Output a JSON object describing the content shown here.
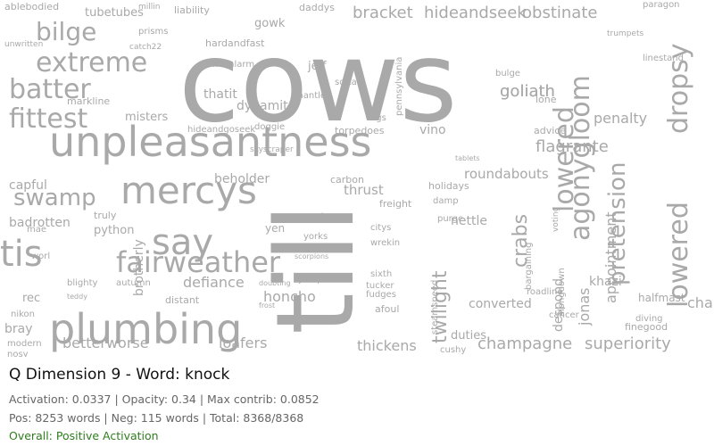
{
  "cloud": {
    "words": [
      {
        "t": "cows",
        "s": 125
      },
      {
        "t": "till",
        "s": 120,
        "r": 1
      },
      {
        "t": "unpleasantness",
        "s": 46
      },
      {
        "t": "mercys",
        "s": 42
      },
      {
        "t": "plumbing",
        "s": 46
      },
      {
        "t": "fairweather",
        "s": 32
      },
      {
        "t": "agonygloom",
        "s": 30,
        "r": 1
      },
      {
        "t": "lowered",
        "s": 30,
        "r": 1
      },
      {
        "t": "dropsy",
        "s": 30,
        "r": 1
      },
      {
        "t": "pretension",
        "s": 26,
        "r": 1
      },
      {
        "t": "say",
        "s": 40
      },
      {
        "t": "tis",
        "s": 40
      },
      {
        "t": "fittest",
        "s": 30
      },
      {
        "t": "batter",
        "s": 30
      },
      {
        "t": "extreme",
        "s": 30
      },
      {
        "t": "bilge",
        "s": 28
      },
      {
        "t": "swamp",
        "s": 26
      },
      {
        "t": "twilight",
        "s": 22,
        "r": 1
      },
      {
        "t": "crabs",
        "s": 22,
        "r": 1
      },
      {
        "t": "champagne",
        "s": 18
      },
      {
        "t": "superiority",
        "s": 18
      },
      {
        "t": "betterworse",
        "s": 16
      },
      {
        "t": "loafers",
        "s": 16
      },
      {
        "t": "thickens",
        "s": 16
      },
      {
        "t": "bracket",
        "s": 18
      },
      {
        "t": "hideandseek",
        "s": 18
      },
      {
        "t": "obstinate",
        "s": 18
      },
      {
        "t": "goliath",
        "s": 18
      },
      {
        "t": "flagrante",
        "s": 18
      },
      {
        "t": "penalty",
        "s": 16
      },
      {
        "t": "appointment",
        "s": 16,
        "r": 1
      },
      {
        "t": "champions",
        "s": 16
      },
      {
        "t": "lowered",
        "s": 30,
        "r": 1
      },
      {
        "t": "jonas",
        "s": 16,
        "r": 1
      },
      {
        "t": "brotherly",
        "s": 14,
        "r": 1
      },
      {
        "t": "honcho",
        "s": 16
      },
      {
        "t": "defiance",
        "s": 16
      },
      {
        "t": "beholder",
        "s": 14
      },
      {
        "t": "dynamite",
        "s": 14
      },
      {
        "t": "thatit",
        "s": 14
      },
      {
        "t": "misters",
        "s": 13
      },
      {
        "t": "vino",
        "s": 14
      },
      {
        "t": "roundabouts",
        "s": 15
      },
      {
        "t": "converted",
        "s": 14
      },
      {
        "t": "thrust",
        "s": 15
      },
      {
        "t": "capful",
        "s": 14
      },
      {
        "t": "badrotten",
        "s": 14
      },
      {
        "t": "python",
        "s": 13
      },
      {
        "t": "nettle",
        "s": 14
      },
      {
        "t": "duties",
        "s": 13
      },
      {
        "t": "despond",
        "s": 14,
        "r": 1
      },
      {
        "t": "khazi",
        "s": 14
      },
      {
        "t": "halfmast",
        "s": 12
      },
      {
        "t": "bray",
        "s": 14
      },
      {
        "t": "rec",
        "s": 13
      },
      {
        "t": "gowk",
        "s": 13
      },
      {
        "t": "jeff",
        "s": 13
      },
      {
        "t": "goliath",
        "s": 18
      },
      {
        "t": "tubetubes",
        "s": 13
      },
      {
        "t": "ablebodied",
        "s": 11
      },
      {
        "t": "liability",
        "s": 11
      },
      {
        "t": "daddys",
        "s": 11
      },
      {
        "t": "paragon",
        "s": 10
      },
      {
        "t": "hardandfast",
        "s": 11
      },
      {
        "t": "fivealarm",
        "s": 10
      },
      {
        "t": "markline",
        "s": 11
      },
      {
        "t": "softan",
        "s": 10
      },
      {
        "t": "mantle",
        "s": 10
      },
      {
        "t": "hideandgoseek",
        "s": 10
      },
      {
        "t": "torpedoes",
        "s": 11
      },
      {
        "t": "doggie",
        "s": 10
      },
      {
        "t": "figs",
        "s": 10
      },
      {
        "t": "lone",
        "s": 11
      },
      {
        "t": "advice",
        "s": 11
      },
      {
        "t": "carbon",
        "s": 11
      },
      {
        "t": "holidays",
        "s": 11
      },
      {
        "t": "damp",
        "s": 10
      },
      {
        "t": "purge",
        "s": 10
      },
      {
        "t": "freight",
        "s": 11
      },
      {
        "t": "vain",
        "s": 12
      },
      {
        "t": "citys",
        "s": 10
      },
      {
        "t": "wrekin",
        "s": 10
      },
      {
        "t": "truly",
        "s": 11
      },
      {
        "t": "yen",
        "s": 12
      },
      {
        "t": "yorks",
        "s": 10
      },
      {
        "t": "sixth",
        "s": 10
      },
      {
        "t": "tucker",
        "s": 10
      },
      {
        "t": "fudges",
        "s": 10
      },
      {
        "t": "joseph",
        "s": 10
      },
      {
        "t": "afoul",
        "s": 11
      },
      {
        "t": "autumn",
        "s": 10
      },
      {
        "t": "blighty",
        "s": 10
      },
      {
        "t": "distant",
        "s": 11
      },
      {
        "t": "nikon",
        "s": 10
      },
      {
        "t": "modern",
        "s": 10
      },
      {
        "t": "nosy",
        "s": 10
      },
      {
        "t": "steamspeed",
        "s": 10,
        "r": 1
      },
      {
        "t": "bargaining",
        "s": 10,
        "r": 1
      },
      {
        "t": "alongdown",
        "s": 10,
        "r": 1
      },
      {
        "t": "roadline",
        "s": 10
      },
      {
        "t": "cancer",
        "s": 10
      },
      {
        "t": "finegood",
        "s": 11
      },
      {
        "t": "diving",
        "s": 10
      },
      {
        "t": "linestand",
        "s": 10
      },
      {
        "t": "bulge",
        "s": 10
      },
      {
        "t": "pennsylvania",
        "s": 10,
        "r": 1
      },
      {
        "t": "skyscraper",
        "s": 9
      },
      {
        "t": "cushy",
        "s": 10
      },
      {
        "t": "worl",
        "s": 10
      },
      {
        "t": "mae",
        "s": 10
      },
      {
        "t": "prisms",
        "s": 10
      },
      {
        "t": "millin",
        "s": 9
      },
      {
        "t": "catch22",
        "s": 9
      },
      {
        "t": "unwritten",
        "s": 9
      },
      {
        "t": "trumpets",
        "s": 9
      },
      {
        "t": "voting",
        "s": 9,
        "r": 1
      },
      {
        "t": "tablets",
        "s": 8
      },
      {
        "t": "scorpions",
        "s": 8
      },
      {
        "t": "teddy",
        "s": 8
      },
      {
        "t": "frost",
        "s": 8
      },
      {
        "t": "doubting",
        "s": 8
      }
    ]
  },
  "panel": {
    "title": "Q Dimension 9 - Word: knock",
    "line1": "Activation: 0.0337 | Opacity: 0.34 | Max contrib: 0.0852",
    "line2": "Pos: 8253 words | Neg: 115 words | Total: 8368/8368",
    "overall": "Overall: Positive Activation"
  },
  "colors": {
    "word": "#a9a9a9",
    "title": "#111111",
    "stats": "#666666",
    "overall": "#2e7d1e"
  }
}
